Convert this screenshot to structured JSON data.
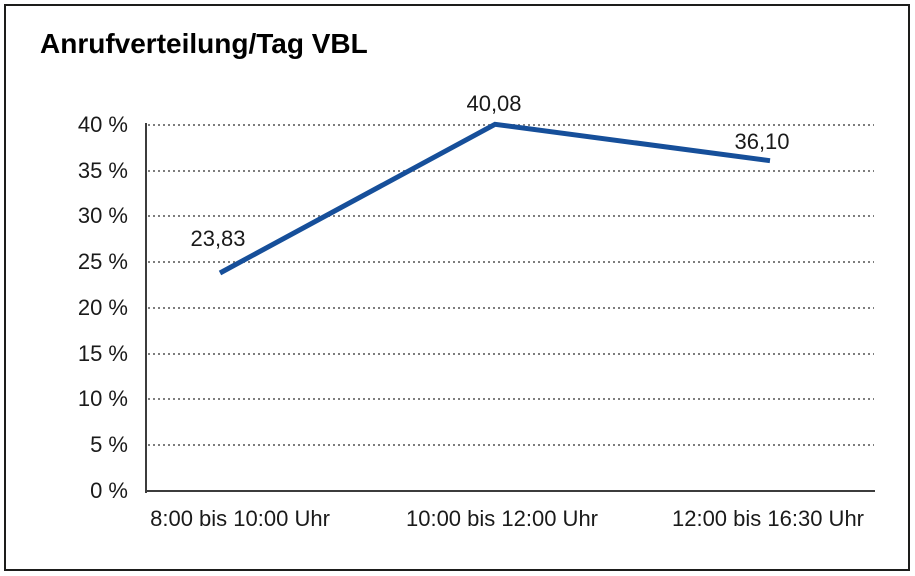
{
  "chart_data": {
    "type": "line",
    "title": "Anrufverteilung/Tag VBL",
    "categories": [
      "8:00 bis 10:00 Uhr",
      "10:00 bis 12:00 Uhr",
      "12:00 bis 16:30 Uhr"
    ],
    "values": [
      23.83,
      40.08,
      36.1
    ],
    "value_labels": [
      "23,83",
      "40,08",
      "36,10"
    ],
    "ytick_labels": [
      "40 %",
      "35 %",
      "30 %",
      "25 %",
      "20 %",
      "15 %",
      "10 %",
      "5 %",
      "0 %"
    ],
    "xlabel": "",
    "ylabel": "",
    "ylim": [
      0,
      40
    ],
    "ytick_step": 5,
    "grid": "horizontal-dotted",
    "legend": "none",
    "line_color": "#164f9a",
    "axis_color": "#3c3c3c",
    "text_color": "#1a1a1a"
  }
}
